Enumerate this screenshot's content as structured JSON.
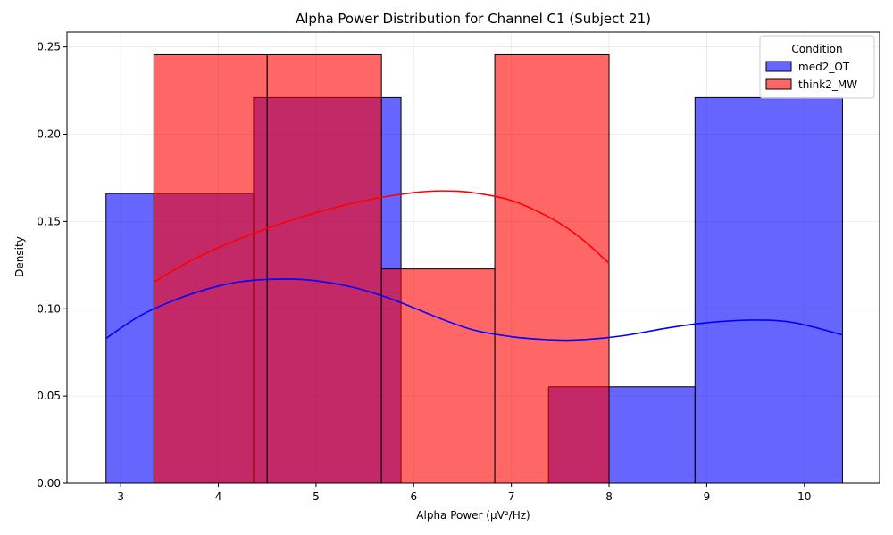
{
  "chart_data": {
    "type": "histogram",
    "title": "Alpha Power Distribution for Channel C1 (Subject 21)",
    "xlabel": "Alpha Power (μV²/Hz)",
    "ylabel": "Density",
    "xlim": [
      2.45,
      10.77
    ],
    "ylim": [
      0,
      0.2585
    ],
    "xticks": [
      3,
      4,
      5,
      6,
      7,
      8,
      9,
      10
    ],
    "yticks": [
      0.0,
      0.05,
      0.1,
      0.15,
      0.2,
      0.25
    ],
    "ytick_labels": [
      "0.00",
      "0.05",
      "0.10",
      "0.15",
      "0.20",
      "0.25"
    ],
    "grid": true,
    "legend": {
      "title": "Condition",
      "placement": "top-right"
    },
    "series": [
      {
        "name": "med2_OT",
        "color": "#0000ff",
        "opacity": 0.6,
        "bins": [
          {
            "x0": 2.85,
            "x1": 4.36,
            "density": 0.166
          },
          {
            "x0": 4.36,
            "x1": 5.87,
            "density": 0.221
          },
          {
            "x0": 5.87,
            "x1": 7.38,
            "density": 0.0
          },
          {
            "x0": 7.38,
            "x1": 8.88,
            "density": 0.0553
          },
          {
            "x0": 8.88,
            "x1": 10.39,
            "density": 0.221
          }
        ],
        "kde": {
          "color": "#0000ff",
          "x": [
            2.85,
            3.2,
            3.6,
            4.0,
            4.3,
            4.7,
            5.0,
            5.4,
            5.8,
            6.2,
            6.6,
            7.0,
            7.3,
            7.6,
            7.9,
            8.2,
            8.6,
            9.0,
            9.5,
            9.9,
            10.39
          ],
          "y": [
            0.083,
            0.096,
            0.106,
            0.113,
            0.116,
            0.117,
            0.116,
            0.112,
            0.105,
            0.096,
            0.088,
            0.084,
            0.0825,
            0.082,
            0.083,
            0.085,
            0.089,
            0.092,
            0.0935,
            0.092,
            0.085
          ]
        }
      },
      {
        "name": "think2_MW",
        "color": "#ff0000",
        "opacity": 0.6,
        "bins": [
          {
            "x0": 3.34,
            "x1": 4.5,
            "density": 0.2455
          },
          {
            "x0": 4.5,
            "x1": 5.67,
            "density": 0.2455
          },
          {
            "x0": 5.67,
            "x1": 6.83,
            "density": 0.1228
          },
          {
            "x0": 6.83,
            "x1": 8.0,
            "density": 0.2455
          }
        ],
        "kde": {
          "color": "#ff0000",
          "x": [
            3.34,
            3.6,
            4.0,
            4.5,
            5.0,
            5.5,
            6.0,
            6.3,
            6.6,
            7.0,
            7.4,
            7.7,
            8.0
          ],
          "y": [
            0.115,
            0.124,
            0.135,
            0.146,
            0.155,
            0.162,
            0.1665,
            0.1675,
            0.1665,
            0.162,
            0.152,
            0.141,
            0.126
          ]
        }
      }
    ]
  }
}
